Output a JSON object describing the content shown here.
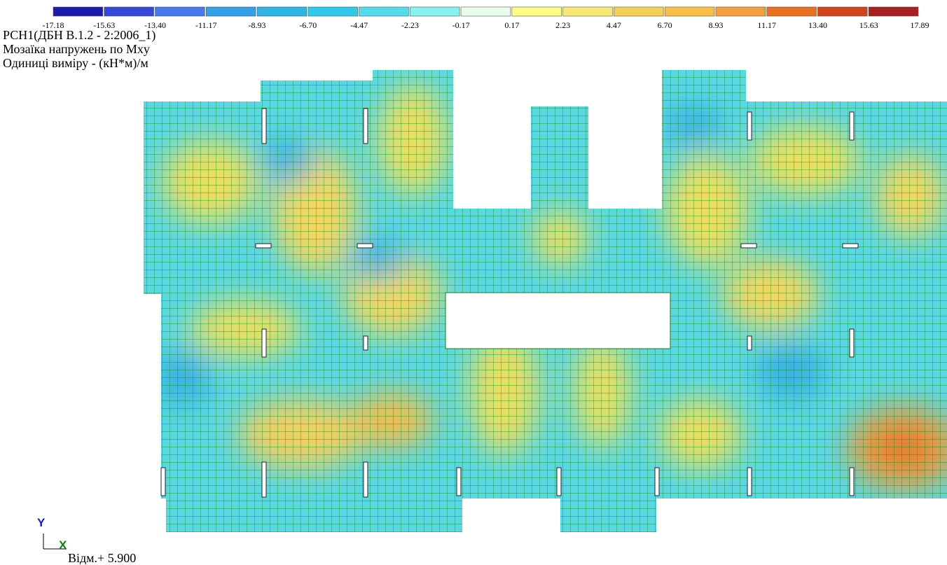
{
  "legend": {
    "labels": [
      "-17.18",
      "-15.63",
      "-13.40",
      "-11.17",
      "-8.93",
      "-6.70",
      "-4.47",
      "-2.23",
      "-0.17",
      "0.17",
      "2.23",
      "4.47",
      "6.70",
      "8.93",
      "11.17",
      "13.40",
      "15.63",
      "17.89"
    ],
    "colors": [
      "#1c1ca8",
      "#3548d8",
      "#4a78e8",
      "#35a0e8",
      "#30b4e6",
      "#32c8e8",
      "#55dcec",
      "#88f2f0",
      "#eaffea",
      "#ffff88",
      "#f8e878",
      "#f2d05a",
      "#f8c048",
      "#f2a040",
      "#e87022",
      "#d04420",
      "#a82020"
    ]
  },
  "header": {
    "line1": "РСН1(ДБН В.1.2 - 2:2006_1)",
    "line2": "Мозаїка напружень по Mxy",
    "line3": "Одиниці виміру - (кН*м)/м"
  },
  "axes": {
    "y": "Y",
    "x": "X"
  },
  "elevation": "Відм.+ 5.900"
}
